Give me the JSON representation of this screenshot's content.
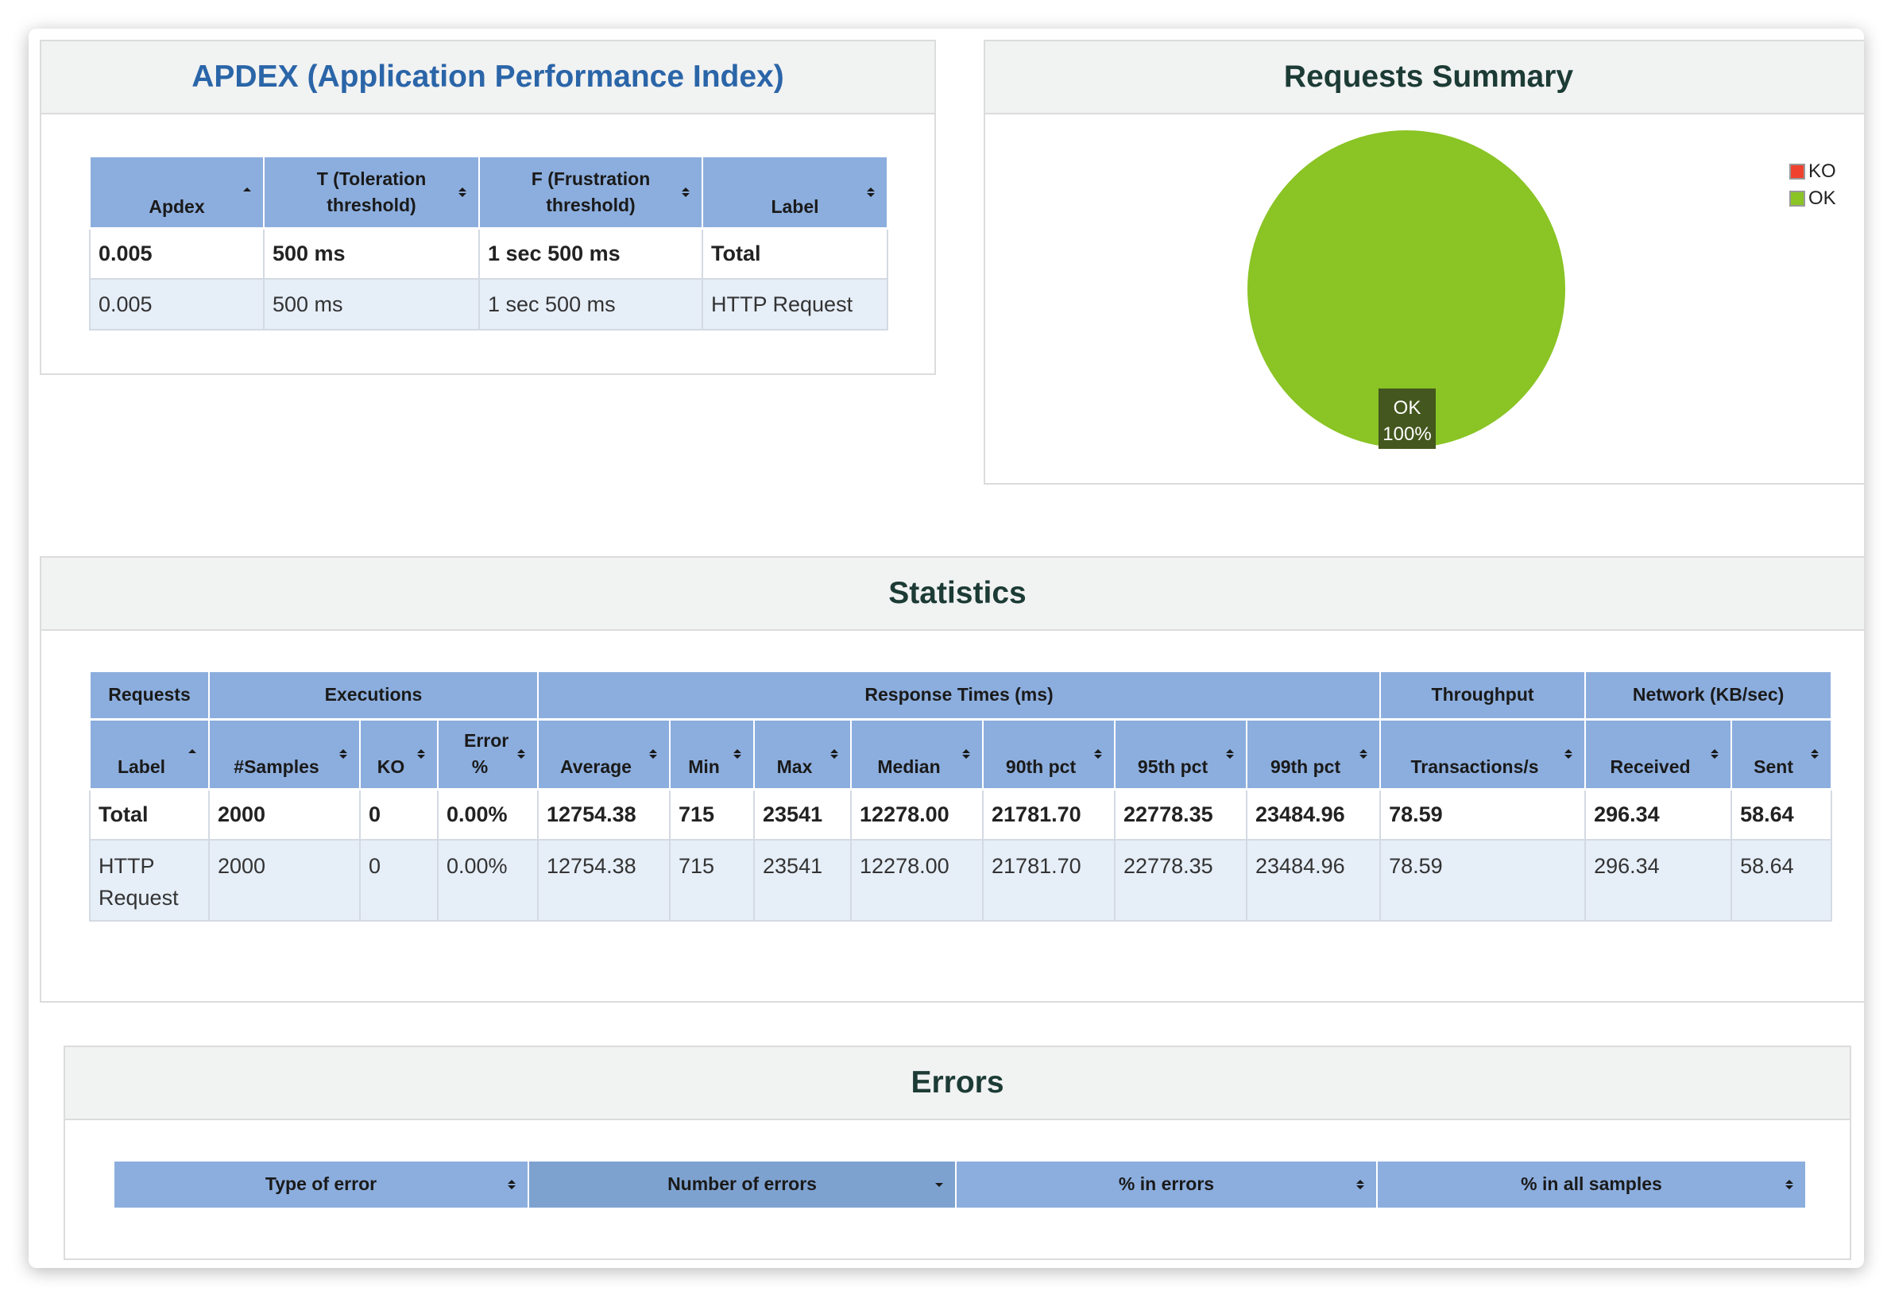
{
  "apdex": {
    "title": "APDEX (Application Performance Index)",
    "headers": [
      "Apdex",
      "T (Toleration threshold)",
      "F (Frustration threshold)",
      "Label"
    ],
    "rows": [
      [
        "0.005",
        "500 ms",
        "1 sec 500 ms",
        "Total"
      ],
      [
        "0.005",
        "500 ms",
        "1 sec 500 ms",
        "HTTP Request"
      ]
    ]
  },
  "summary": {
    "title": "Requests Summary",
    "legend": [
      {
        "label": "KO",
        "color": "#f0412f"
      },
      {
        "label": "OK",
        "color": "#8ac425"
      }
    ],
    "slice_label": "OK",
    "slice_percent": "100%",
    "chart_data": {
      "type": "pie",
      "categories": [
        "KO",
        "OK"
      ],
      "values": [
        0,
        100
      ],
      "legend_position": "top-right"
    }
  },
  "statistics": {
    "title": "Statistics",
    "groups": [
      "Requests",
      "Executions",
      "Response Times (ms)",
      "Throughput",
      "Network (KB/sec)"
    ],
    "headers": [
      "Label",
      "#Samples",
      "KO",
      "Error %",
      "Average",
      "Min",
      "Max",
      "Median",
      "90th pct",
      "95th pct",
      "99th pct",
      "Transactions/s",
      "Received",
      "Sent"
    ],
    "rows": [
      [
        "Total",
        "2000",
        "0",
        "0.00%",
        "12754.38",
        "715",
        "23541",
        "12278.00",
        "21781.70",
        "22778.35",
        "23484.96",
        "78.59",
        "296.34",
        "58.64"
      ],
      [
        "HTTP Request",
        "2000",
        "0",
        "0.00%",
        "12754.38",
        "715",
        "23541",
        "12278.00",
        "21781.70",
        "22778.35",
        "23484.96",
        "78.59",
        "296.34",
        "58.64"
      ]
    ]
  },
  "errors": {
    "title": "Errors",
    "headers": [
      "Type of error",
      "Number of errors",
      "% in errors",
      "% in all samples"
    ]
  },
  "colors": {
    "header_blue": "#8caede",
    "header_blue_sorted": "#7ea2d0",
    "title_blue": "#2a65a8",
    "title_dark": "#1c3b35",
    "ok_green": "#8ac425",
    "ko_red": "#f0412f",
    "row_alt": "#e6eef8"
  }
}
